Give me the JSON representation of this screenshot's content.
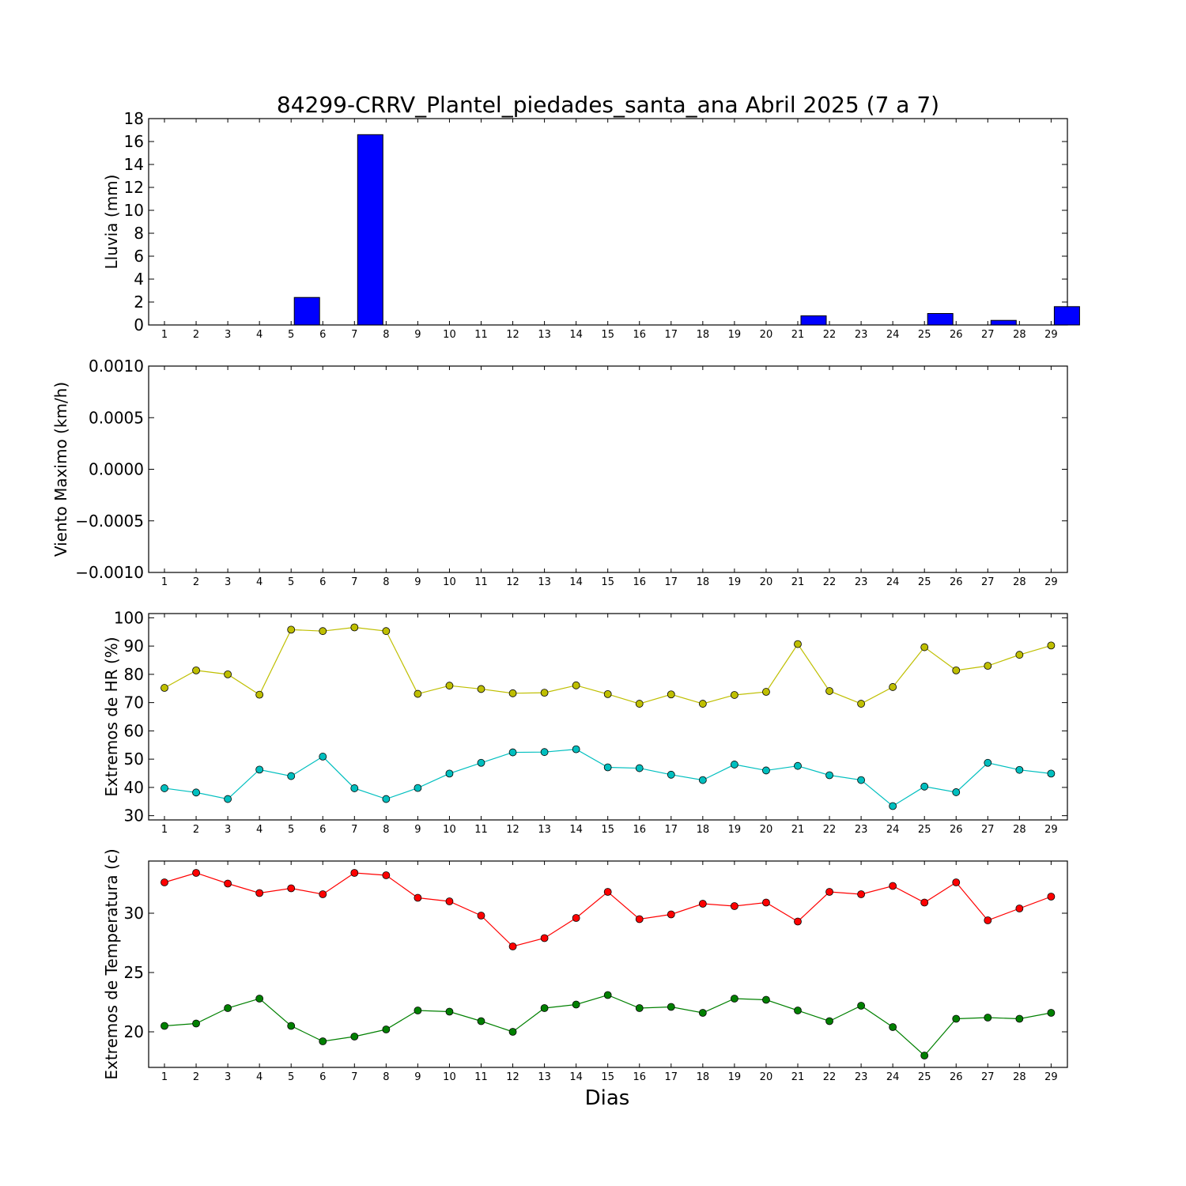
{
  "figure": {
    "title": "84299-CRRV_Plantel_piedades_santa_ana Abril 2025  (7 a 7)",
    "xlabel": "Dias"
  },
  "chart_data": [
    {
      "type": "bar",
      "ylabel": "Lluvia (mm)",
      "ylim": [
        0,
        18
      ],
      "yticks": [
        0,
        2,
        4,
        6,
        8,
        10,
        12,
        14,
        16,
        18
      ],
      "categories": [
        "1",
        "2",
        "3",
        "4",
        "5",
        "6",
        "7",
        "8",
        "9",
        "10",
        "11",
        "12",
        "13",
        "14",
        "15",
        "16",
        "17",
        "18",
        "19",
        "20",
        "21",
        "22",
        "23",
        "24",
        "25",
        "26",
        "27",
        "28",
        "29"
      ],
      "series": [
        {
          "values": [
            0,
            0,
            0,
            0,
            2.4,
            0,
            16.6,
            0,
            0,
            0,
            0,
            0,
            0,
            0,
            0,
            0,
            0,
            0,
            0,
            0,
            0.8,
            0,
            0,
            0,
            1.0,
            0,
            0.4,
            0,
            1.6
          ],
          "color": "#0000ff"
        }
      ],
      "grid": false
    },
    {
      "type": "line",
      "ylabel": "Viento Maximo (km/h)",
      "ylim": [
        -0.001,
        0.001
      ],
      "yticks": [
        "−0.0010",
        "−0.0005",
        "0.0000",
        "0.0005",
        "0.0010"
      ],
      "yticks_values": [
        -0.001,
        -0.0005,
        0,
        0.0005,
        0.001
      ],
      "categories": [
        "1",
        "2",
        "3",
        "4",
        "5",
        "6",
        "7",
        "8",
        "9",
        "10",
        "11",
        "12",
        "13",
        "14",
        "15",
        "16",
        "17",
        "18",
        "19",
        "20",
        "21",
        "22",
        "23",
        "24",
        "25",
        "26",
        "27",
        "28",
        "29"
      ],
      "series": [],
      "grid": false
    },
    {
      "type": "line",
      "ylabel": "Extremos de HR (%)",
      "ylim": [
        28.5,
        101.5
      ],
      "yticks": [
        30,
        40,
        50,
        60,
        70,
        80,
        90,
        100
      ],
      "categories": [
        "1",
        "2",
        "3",
        "4",
        "5",
        "6",
        "7",
        "8",
        "9",
        "10",
        "11",
        "12",
        "13",
        "14",
        "15",
        "16",
        "17",
        "18",
        "19",
        "20",
        "21",
        "22",
        "23",
        "24",
        "25",
        "26",
        "27",
        "28",
        "29"
      ],
      "series": [
        {
          "values": [
            75.2,
            81.4,
            80.0,
            72.8,
            95.8,
            95.3,
            96.6,
            95.3,
            73.1,
            76.0,
            74.8,
            73.3,
            73.5,
            76.1,
            73.0,
            69.6,
            72.9,
            69.6,
            72.7,
            73.8,
            90.7,
            74.1,
            69.6,
            75.5,
            89.6,
            81.4,
            83.0,
            86.9,
            90.2
          ],
          "color": "#bfbf00"
        },
        {
          "values": [
            39.7,
            38.2,
            35.9,
            46.3,
            44.0,
            50.9,
            39.7,
            35.9,
            39.8,
            44.9,
            48.7,
            52.4,
            52.5,
            53.5,
            47.1,
            46.8,
            44.5,
            42.6,
            48.1,
            46.0,
            47.6,
            44.3,
            42.6,
            33.4,
            40.3,
            38.3,
            48.7,
            46.2,
            44.9
          ],
          "color": "#00bfbf"
        }
      ],
      "grid": false
    },
    {
      "type": "line",
      "ylabel": "Extremos de Temperatura (c)",
      "ylim": [
        17,
        34.4
      ],
      "yticks": [
        20,
        25,
        30
      ],
      "categories": [
        "1",
        "2",
        "3",
        "4",
        "5",
        "6",
        "7",
        "8",
        "9",
        "10",
        "11",
        "12",
        "13",
        "14",
        "15",
        "16",
        "17",
        "18",
        "19",
        "20",
        "21",
        "22",
        "23",
        "24",
        "25",
        "26",
        "27",
        "28",
        "29"
      ],
      "series": [
        {
          "values": [
            32.6,
            33.4,
            32.5,
            31.7,
            32.1,
            31.6,
            33.4,
            33.2,
            31.3,
            31.0,
            29.8,
            27.2,
            27.9,
            29.6,
            31.8,
            29.5,
            29.9,
            30.8,
            30.6,
            30.9,
            29.3,
            31.8,
            31.6,
            32.3,
            30.9,
            32.6,
            29.4,
            30.4,
            31.4
          ],
          "color": "#ff0000"
        },
        {
          "values": [
            20.5,
            20.7,
            22.0,
            22.8,
            20.5,
            19.2,
            19.6,
            20.2,
            21.8,
            21.7,
            20.9,
            20.0,
            22.0,
            22.3,
            23.1,
            22.0,
            22.1,
            21.6,
            22.8,
            22.7,
            21.8,
            20.9,
            22.2,
            20.4,
            18.0,
            21.1,
            21.2,
            21.1,
            21.6
          ],
          "color": "#008000"
        }
      ],
      "grid": false
    }
  ]
}
